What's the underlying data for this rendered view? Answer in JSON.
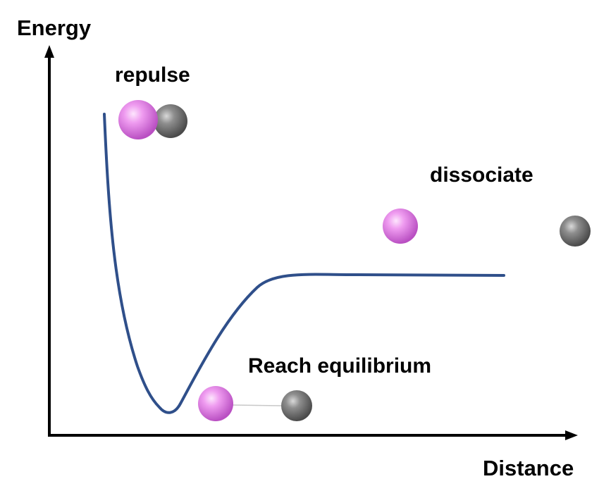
{
  "axes": {
    "y_label": "Energy",
    "x_label": "Distance"
  },
  "annotations": {
    "repulse": "repulse",
    "dissociate": "dissociate",
    "equilibrium": "Reach equilibrium"
  },
  "colors": {
    "curve": "#2f4f8a",
    "axis": "#000000",
    "atom_a": "#e58ae8",
    "atom_b": "#808080",
    "bond": "#c8c8c8"
  },
  "atoms": {
    "a_name": "pink-atom",
    "b_name": "gray-atom"
  }
}
